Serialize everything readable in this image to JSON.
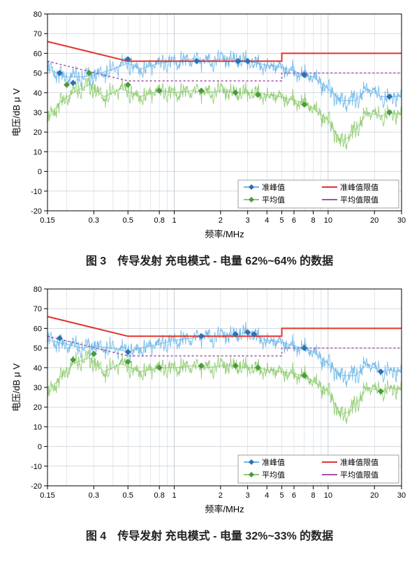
{
  "charts": [
    {
      "id": "chart3",
      "caption": "图 3　传导发射 充电模式 - 电量 62%~64% 的数据",
      "xlabel": "频率/MHz",
      "ylabel": "电压/dB μ V",
      "xlim_log": [
        0.15,
        30
      ],
      "ylim": [
        -20,
        80
      ],
      "ytick_step": 10,
      "xticks": [
        0.15,
        0.3,
        0.5,
        0.8,
        1,
        2,
        3,
        4,
        5,
        6,
        8,
        10,
        20,
        30
      ],
      "xtick_labels": [
        "0.15",
        "0.3",
        "0.5",
        "0.8",
        "1",
        "2",
        "3",
        "4",
        "5",
        "6",
        "8",
        "10",
        "20",
        "30"
      ],
      "yticks": [
        -20,
        -10,
        0,
        10,
        20,
        30,
        40,
        50,
        60,
        70,
        80
      ],
      "background_color": "#ffffff",
      "grid_color": "#b8c4d0",
      "axis_color": "#000000",
      "label_fontsize": 13,
      "tick_fontsize": 11,
      "legend": {
        "position": "bottom-right",
        "items": [
          {
            "label": "准峰值",
            "color": "#6bb7e8",
            "marker": "diamond",
            "marker_color": "#2e6fb3"
          },
          {
            "label": "准峰值限值",
            "color": "#e3332c",
            "marker": null
          },
          {
            "label": "平均值",
            "color": "#8dcb6e",
            "marker": "diamond",
            "marker_color": "#4a9b3a"
          },
          {
            "label": "平均值限值",
            "color": "#a84fa8",
            "marker": null
          }
        ],
        "border_color": "#888"
      },
      "series": {
        "qp_limit": {
          "type": "line",
          "color": "#e3332c",
          "width": 2,
          "points": [
            [
              0.15,
              66
            ],
            [
              0.5,
              56
            ],
            [
              5,
              56
            ],
            [
              5,
              60
            ],
            [
              30,
              60
            ]
          ]
        },
        "av_limit": {
          "type": "line",
          "color": "#a84fa8",
          "width": 1.5,
          "dash": "3,3",
          "points": [
            [
              0.15,
              56
            ],
            [
              0.5,
              46
            ],
            [
              5,
              46
            ],
            [
              5,
              50
            ],
            [
              30,
              50
            ]
          ]
        },
        "qp_trend": {
          "color": "#6bb7e8",
          "band": 4,
          "points": [
            [
              0.15,
              52
            ],
            [
              0.2,
              48
            ],
            [
              0.25,
              48
            ],
            [
              0.3,
              49
            ],
            [
              0.4,
              52
            ],
            [
              0.5,
              55
            ],
            [
              0.6,
              52
            ],
            [
              0.8,
              55
            ],
            [
              1,
              56
            ],
            [
              1.3,
              57
            ],
            [
              1.6,
              56
            ],
            [
              2,
              57
            ],
            [
              2.5,
              57
            ],
            [
              3,
              56
            ],
            [
              3.5,
              55
            ],
            [
              4,
              54
            ],
            [
              5,
              53
            ],
            [
              6,
              51
            ],
            [
              7,
              49
            ],
            [
              8,
              48
            ],
            [
              10,
              42
            ],
            [
              12,
              36
            ],
            [
              15,
              36
            ],
            [
              18,
              42
            ],
            [
              20,
              40
            ],
            [
              22,
              38
            ],
            [
              25,
              38
            ],
            [
              28,
              38
            ],
            [
              30,
              38
            ]
          ]
        },
        "av_trend": {
          "color": "#8dcb6e",
          "band": 4,
          "points": [
            [
              0.15,
              26
            ],
            [
              0.18,
              35
            ],
            [
              0.22,
              40
            ],
            [
              0.28,
              44
            ],
            [
              0.35,
              38
            ],
            [
              0.45,
              42
            ],
            [
              0.6,
              38
            ],
            [
              0.8,
              41
            ],
            [
              1,
              40
            ],
            [
              1.3,
              41
            ],
            [
              1.6,
              40
            ],
            [
              2,
              41
            ],
            [
              2.5,
              40
            ],
            [
              3,
              40
            ],
            [
              3.5,
              40
            ],
            [
              4,
              39
            ],
            [
              5,
              38
            ],
            [
              6,
              36
            ],
            [
              7,
              35
            ],
            [
              8,
              32
            ],
            [
              10,
              26
            ],
            [
              12,
              15
            ],
            [
              14,
              18
            ],
            [
              16,
              24
            ],
            [
              18,
              30
            ],
            [
              20,
              29
            ],
            [
              22,
              28
            ],
            [
              25,
              30
            ],
            [
              28,
              29
            ],
            [
              30,
              29
            ]
          ]
        },
        "qp_markers": {
          "color": "#2e6fb3",
          "points": [
            [
              0.18,
              50
            ],
            [
              0.22,
              45
            ],
            [
              0.5,
              57
            ],
            [
              1.4,
              56
            ],
            [
              2.6,
              56
            ],
            [
              3,
              56
            ],
            [
              7,
              49
            ],
            [
              25,
              38
            ]
          ]
        },
        "av_markers": {
          "color": "#4a9b3a",
          "points": [
            [
              0.2,
              44
            ],
            [
              0.28,
              50
            ],
            [
              0.5,
              44
            ],
            [
              0.8,
              41
            ],
            [
              1.5,
              41
            ],
            [
              2.5,
              40
            ],
            [
              3.5,
              39
            ],
            [
              7,
              34
            ],
            [
              25,
              30
            ]
          ]
        }
      }
    },
    {
      "id": "chart4",
      "caption": "图 4　传导发射 充电模式 - 电量 32%~33% 的数据",
      "xlabel": "频率/MHz",
      "ylabel": "电压/dB μ V",
      "xlim_log": [
        0.15,
        30
      ],
      "ylim": [
        -20,
        80
      ],
      "ytick_step": 10,
      "xticks": [
        0.15,
        0.3,
        0.5,
        0.8,
        1,
        2,
        3,
        4,
        5,
        6,
        8,
        10,
        20,
        30
      ],
      "xtick_labels": [
        "0.15",
        "0.3",
        "0.5",
        "0.8",
        "1",
        "2",
        "3",
        "4",
        "5",
        "6",
        "8",
        "10",
        "20",
        "30"
      ],
      "yticks": [
        -20,
        -10,
        0,
        10,
        20,
        30,
        40,
        50,
        60,
        70,
        80
      ],
      "background_color": "#ffffff",
      "grid_color": "#b8c4d0",
      "axis_color": "#000000",
      "label_fontsize": 13,
      "tick_fontsize": 11,
      "legend": {
        "position": "bottom-right",
        "items": [
          {
            "label": "准峰值",
            "color": "#6bb7e8",
            "marker": "diamond",
            "marker_color": "#2e6fb3"
          },
          {
            "label": "准峰值限值",
            "color": "#e3332c",
            "marker": null
          },
          {
            "label": "平均值",
            "color": "#8dcb6e",
            "marker": "diamond",
            "marker_color": "#4a9b3a"
          },
          {
            "label": "平均值限值",
            "color": "#a84fa8",
            "marker": null
          }
        ],
        "border_color": "#888"
      },
      "series": {
        "qp_limit": {
          "type": "line",
          "color": "#e3332c",
          "width": 2,
          "points": [
            [
              0.15,
              66
            ],
            [
              0.5,
              56
            ],
            [
              5,
              56
            ],
            [
              5,
              60
            ],
            [
              30,
              60
            ]
          ]
        },
        "av_limit": {
          "type": "line",
          "color": "#a84fa8",
          "width": 1.5,
          "dash": "3,3",
          "points": [
            [
              0.15,
              56
            ],
            [
              0.5,
              46
            ],
            [
              5,
              46
            ],
            [
              5,
              50
            ],
            [
              30,
              50
            ]
          ]
        },
        "qp_trend": {
          "color": "#6bb7e8",
          "band": 4,
          "points": [
            [
              0.15,
              54
            ],
            [
              0.2,
              52
            ],
            [
              0.25,
              50
            ],
            [
              0.3,
              51
            ],
            [
              0.4,
              50
            ],
            [
              0.5,
              48
            ],
            [
              0.6,
              50
            ],
            [
              0.8,
              52
            ],
            [
              1,
              54
            ],
            [
              1.3,
              55
            ],
            [
              1.6,
              56
            ],
            [
              2,
              56
            ],
            [
              2.5,
              57
            ],
            [
              3,
              58
            ],
            [
              3.5,
              56
            ],
            [
              4,
              54
            ],
            [
              5,
              53
            ],
            [
              6,
              51
            ],
            [
              7,
              50
            ],
            [
              8,
              48
            ],
            [
              10,
              42
            ],
            [
              12,
              36
            ],
            [
              15,
              36
            ],
            [
              18,
              42
            ],
            [
              20,
              40
            ],
            [
              22,
              38
            ],
            [
              25,
              39
            ],
            [
              28,
              38
            ],
            [
              30,
              38
            ]
          ]
        },
        "av_trend": {
          "color": "#8dcb6e",
          "band": 4,
          "points": [
            [
              0.15,
              26
            ],
            [
              0.18,
              35
            ],
            [
              0.22,
              42
            ],
            [
              0.28,
              45
            ],
            [
              0.35,
              38
            ],
            [
              0.45,
              42
            ],
            [
              0.6,
              38
            ],
            [
              0.8,
              40
            ],
            [
              1,
              40
            ],
            [
              1.3,
              41
            ],
            [
              1.6,
              40
            ],
            [
              2,
              41
            ],
            [
              2.5,
              41
            ],
            [
              3,
              40
            ],
            [
              3.5,
              40
            ],
            [
              4,
              39
            ],
            [
              5,
              38
            ],
            [
              6,
              37
            ],
            [
              7,
              36
            ],
            [
              8,
              33
            ],
            [
              10,
              28
            ],
            [
              12,
              16
            ],
            [
              14,
              18
            ],
            [
              16,
              24
            ],
            [
              18,
              30
            ],
            [
              20,
              29
            ],
            [
              22,
              28
            ],
            [
              25,
              30
            ],
            [
              28,
              29
            ],
            [
              30,
              29
            ]
          ]
        },
        "qp_markers": {
          "color": "#2e6fb3",
          "points": [
            [
              0.18,
              55
            ],
            [
              0.5,
              48
            ],
            [
              1.5,
              56
            ],
            [
              2.5,
              57
            ],
            [
              3,
              58
            ],
            [
              3.3,
              57
            ],
            [
              7,
              50
            ],
            [
              22,
              38
            ]
          ]
        },
        "av_markers": {
          "color": "#4a9b3a",
          "points": [
            [
              0.22,
              44
            ],
            [
              0.3,
              47
            ],
            [
              0.5,
              43
            ],
            [
              0.8,
              40
            ],
            [
              1.5,
              41
            ],
            [
              2.5,
              41
            ],
            [
              3.5,
              40
            ],
            [
              7,
              36
            ],
            [
              22,
              28
            ]
          ]
        }
      }
    }
  ]
}
